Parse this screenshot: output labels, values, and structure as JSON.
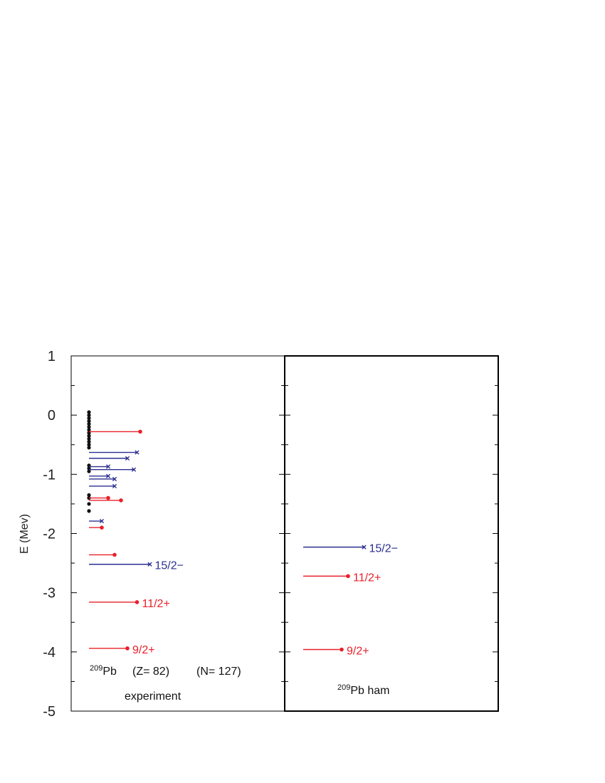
{
  "chart_data": {
    "type": "scatter",
    "ylabel": "E (Mev)",
    "ylim": [
      -5,
      1
    ],
    "y_ticks": [
      "1",
      "0",
      "-1",
      "-2",
      "-3",
      "-4",
      "-5"
    ],
    "colors": {
      "positive_parity": "#e8202a",
      "negative_parity": "#2b2f8f",
      "dense_levels": "#111111",
      "frame": "#000000"
    },
    "panels": [
      {
        "name": "experiment",
        "label_mass": "209",
        "label_element": "Pb",
        "label_z": "(Z= 82)",
        "label_n": "(N= 127)",
        "caption": "experiment",
        "dense_levels": [
          0.05,
          0.0,
          -0.05,
          -0.1,
          -0.15,
          -0.2,
          -0.25,
          -0.3,
          -0.35,
          -0.4,
          -0.45,
          -0.5,
          -0.55,
          -0.85,
          -0.9,
          -0.95,
          -1.35,
          -1.4,
          -1.5,
          -1.62
        ],
        "levels": [
          {
            "E": -0.28,
            "parity": "+",
            "length": 0.8,
            "label": ""
          },
          {
            "E": -0.63,
            "parity": "-",
            "length": 0.75,
            "label": ""
          },
          {
            "E": -0.73,
            "parity": "-",
            "length": 0.6,
            "label": ""
          },
          {
            "E": -0.87,
            "parity": "-",
            "length": 0.3,
            "label": ""
          },
          {
            "E": -0.92,
            "parity": "-",
            "length": 0.7,
            "label": ""
          },
          {
            "E": -1.03,
            "parity": "-",
            "length": 0.3,
            "label": ""
          },
          {
            "E": -1.08,
            "parity": "-",
            "length": 0.4,
            "label": ""
          },
          {
            "E": -1.2,
            "parity": "-",
            "length": 0.4,
            "label": ""
          },
          {
            "E": -1.4,
            "parity": "+",
            "length": 0.3,
            "label": ""
          },
          {
            "E": -1.44,
            "parity": "+",
            "length": 0.5,
            "label": ""
          },
          {
            "E": -1.79,
            "parity": "-",
            "length": 0.2,
            "label": ""
          },
          {
            "E": -1.9,
            "parity": "+",
            "length": 0.2,
            "label": ""
          },
          {
            "E": -2.36,
            "parity": "+",
            "length": 0.4,
            "label": ""
          },
          {
            "E": -2.52,
            "parity": "-",
            "length": 0.95,
            "label": "15/2−"
          },
          {
            "E": -3.16,
            "parity": "+",
            "length": 0.75,
            "label": "11/2+"
          },
          {
            "E": -3.94,
            "parity": "+",
            "length": 0.6,
            "label": "9/2+"
          }
        ]
      },
      {
        "name": "ham",
        "label_mass": "209",
        "label_element": "Pb ham",
        "levels": [
          {
            "E": -2.23,
            "parity": "-",
            "length": 0.95,
            "label": "15/2−"
          },
          {
            "E": -2.72,
            "parity": "+",
            "length": 0.7,
            "label": "11/2+"
          },
          {
            "E": -3.96,
            "parity": "+",
            "length": 0.6,
            "label": "9/2+"
          }
        ]
      }
    ]
  }
}
